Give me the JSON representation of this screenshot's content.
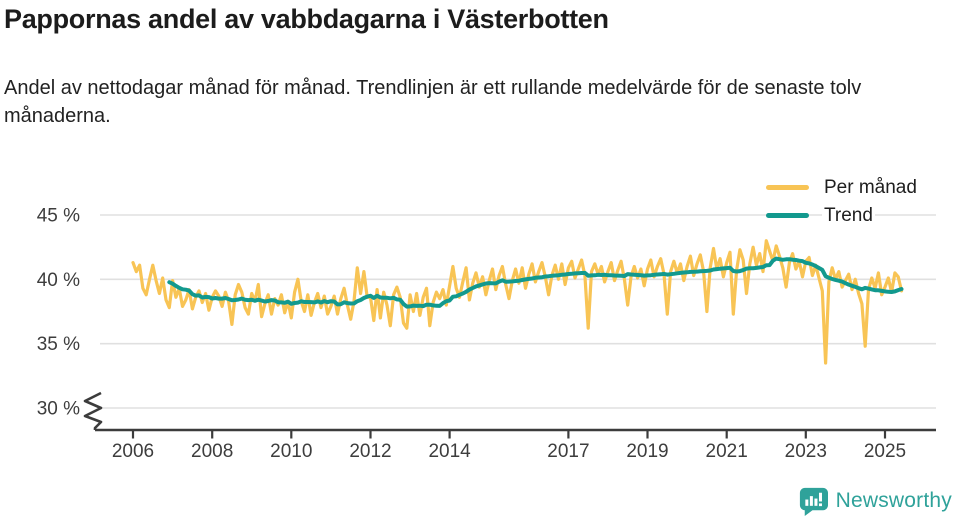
{
  "header": {
    "title": "Pappornas andel av vabbdagarna i Västerbotten",
    "subtitle": "Andel av nettodagar månad för månad. Trendlinjen är ett rullande medelvärde för de senaste tolv månaderna."
  },
  "legend": {
    "items": [
      {
        "label": "Per månad",
        "color": "#F8C455"
      },
      {
        "label": "Trend",
        "color": "#12998E"
      }
    ]
  },
  "axes": {
    "y_tick_labels": [
      "45 %",
      "40 %",
      "35 %",
      "30 %"
    ],
    "x_tick_labels": [
      "2006",
      "2008",
      "2010",
      "2012",
      "2014",
      "2017",
      "2019",
      "2021",
      "2023",
      "2025"
    ],
    "axis_break_at_bottom": true
  },
  "chart_data": {
    "type": "line",
    "title": "Pappornas andel av vabbdagarna i Västerbotten",
    "unit": "%",
    "frequency": "monthly",
    "x_start": "2006-01",
    "x_end": "2025-06",
    "ylim": [
      30,
      45
    ],
    "y_axis_break_below": 30,
    "y_ticks": [
      45,
      40,
      35,
      30
    ],
    "y_tick_suffix": " %",
    "x_ticks": [
      2006,
      2008,
      2010,
      2012,
      2014,
      2017,
      2019,
      2021,
      2023,
      2025
    ],
    "grid": "horizontal",
    "legend_position": "top-right",
    "series": [
      {
        "name": "Per månad",
        "color": "#F8C455",
        "values": [
          41.3,
          40.6,
          41.1,
          39.3,
          38.8,
          40.0,
          41.1,
          39.9,
          38.9,
          40.1,
          38.4,
          37.8,
          39.9,
          38.6,
          39.3,
          37.9,
          38.4,
          39.2,
          37.7,
          38.6,
          39.1,
          38.2,
          38.9,
          37.6,
          38.6,
          39.1,
          38.7,
          37.9,
          39.0,
          38.3,
          36.5,
          38.8,
          39.6,
          39.0,
          37.8,
          37.3,
          38.9,
          38.3,
          39.6,
          37.1,
          38.1,
          38.8,
          37.3,
          38.5,
          38.0,
          38.8,
          37.4,
          38.3,
          37.0,
          39.0,
          40.0,
          38.3,
          37.5,
          38.8,
          37.2,
          38.2,
          38.9,
          37.8,
          38.7,
          37.3,
          37.9,
          38.7,
          37.3,
          38.5,
          39.3,
          38.0,
          36.9,
          38.3,
          40.9,
          38.9,
          40.6,
          38.6,
          38.6,
          36.8,
          39.2,
          37.0,
          39.0,
          38.0,
          36.4,
          38.8,
          39.4,
          38.6,
          36.6,
          36.2,
          38.8,
          37.5,
          38.9,
          37.2,
          38.6,
          39.3,
          36.4,
          38.2,
          39.0,
          38.5,
          39.2,
          38.0,
          39.5,
          41.0,
          39.3,
          38.6,
          39.8,
          40.9,
          38.4,
          39.7,
          40.5,
          39.4,
          40.2,
          38.8,
          39.9,
          40.8,
          39.2,
          40.3,
          41.0,
          39.6,
          38.5,
          39.9,
          40.8,
          39.7,
          40.9,
          39.3,
          40.4,
          41.2,
          39.8,
          40.6,
          41.3,
          40.2,
          38.8,
          40.3,
          41.1,
          40.0,
          41.2,
          39.6,
          40.9,
          41.4,
          40.1,
          40.8,
          41.5,
          40.3,
          36.2,
          40.6,
          41.2,
          40.4,
          41.0,
          39.8,
          40.6,
          41.3,
          39.9,
          40.7,
          41.4,
          40.0,
          38.0,
          40.2,
          41.0,
          40.1,
          40.8,
          39.5,
          40.8,
          41.5,
          40.2,
          41.0,
          41.6,
          40.4,
          37.3,
          40.6,
          41.4,
          40.5,
          41.2,
          39.9,
          41.0,
          41.8,
          40.3,
          41.2,
          41.9,
          40.6,
          37.5,
          40.9,
          42.4,
          40.8,
          41.6,
          40.2,
          41.3,
          42.1,
          37.3,
          40.7,
          42.3,
          41.5,
          38.9,
          41.2,
          42.5,
          41.1,
          42.0,
          40.6,
          43.0,
          42.2,
          41.4,
          42.6,
          41.8,
          40.9,
          39.4,
          41.3,
          42.0,
          40.8,
          41.4,
          40.2,
          41.4,
          41.7,
          40.3,
          41.1,
          40.1,
          39.1,
          33.5,
          39.8,
          40.9,
          40.0,
          40.6,
          39.4,
          39.9,
          40.4,
          39.2,
          40.0,
          38.9,
          38.1,
          34.8,
          39.2,
          40.1,
          39.3,
          40.5,
          38.8,
          39.4,
          40.1,
          39.0,
          40.5,
          40.2,
          39.1
        ]
      },
      {
        "name": "Trend",
        "color": "#12998E",
        "derivation": "rolling 12-month mean of the Per månad series"
      }
    ]
  },
  "branding": {
    "name": "Newsworthy",
    "color": "#2FA29A",
    "icon": "newsworthy-speech-bubble-bar-chart-icon"
  },
  "style": {
    "grid_color": "#E0E0E0",
    "axis_color": "#3C3C3C",
    "tick_label_color": "#3D3D3D"
  }
}
